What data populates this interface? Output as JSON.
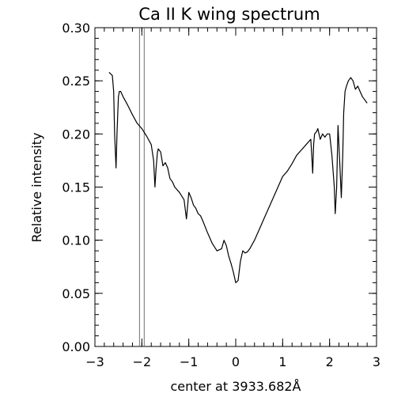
{
  "chart_data": {
    "type": "line",
    "title": "Ca II K wing spectrum",
    "xlabel": "center at 3933.682Å",
    "ylabel": "Relative intensity",
    "xlim": [
      -3,
      3
    ],
    "ylim": [
      0.0,
      0.3
    ],
    "x_ticks": [
      "−3",
      "−2",
      "−1",
      "0",
      "1",
      "2",
      "3"
    ],
    "y_ticks": [
      "0.00",
      "0.05",
      "0.10",
      "0.15",
      "0.20",
      "0.25",
      "0.30"
    ],
    "grid": false,
    "line_color": "#000000",
    "marker_line_color": "#707070",
    "vertical_markers_x": [
      -2.05,
      -1.95
    ],
    "series": [
      {
        "x": [
          -2.7,
          -2.63,
          -2.6,
          -2.58,
          -2.55,
          -2.53,
          -2.5,
          -2.48,
          -2.45,
          -2.4,
          -2.3,
          -2.2,
          -2.1,
          -2.0,
          -1.9,
          -1.8,
          -1.75,
          -1.72,
          -1.7,
          -1.67,
          -1.65,
          -1.6,
          -1.55,
          -1.5,
          -1.45,
          -1.42,
          -1.4,
          -1.35,
          -1.3,
          -1.2,
          -1.1,
          -1.05,
          -1.03,
          -1.0,
          -0.95,
          -0.9,
          -0.85,
          -0.8,
          -0.75,
          -0.7,
          -0.6,
          -0.5,
          -0.4,
          -0.3,
          -0.25,
          -0.2,
          -0.15,
          -0.1,
          -0.05,
          0.0,
          0.05,
          0.1,
          0.15,
          0.2,
          0.25,
          0.3,
          0.4,
          0.5,
          0.6,
          0.7,
          0.8,
          0.9,
          1.0,
          1.1,
          1.2,
          1.3,
          1.4,
          1.5,
          1.6,
          1.62,
          1.64,
          1.66,
          1.68,
          1.72,
          1.75,
          1.8,
          1.85,
          1.9,
          1.95,
          2.0,
          2.05,
          2.1,
          2.12,
          2.15,
          2.18,
          2.22,
          2.25,
          2.28,
          2.3,
          2.33,
          2.36,
          2.4,
          2.45,
          2.5,
          2.55,
          2.6,
          2.65,
          2.7,
          2.75,
          2.8
        ],
        "y": [
          0.258,
          0.255,
          0.24,
          0.2,
          0.168,
          0.2,
          0.235,
          0.24,
          0.24,
          0.235,
          0.227,
          0.218,
          0.21,
          0.205,
          0.198,
          0.19,
          0.175,
          0.15,
          0.165,
          0.182,
          0.186,
          0.183,
          0.17,
          0.173,
          0.168,
          0.162,
          0.158,
          0.155,
          0.15,
          0.145,
          0.138,
          0.12,
          0.13,
          0.145,
          0.14,
          0.133,
          0.13,
          0.125,
          0.123,
          0.118,
          0.107,
          0.097,
          0.09,
          0.092,
          0.1,
          0.095,
          0.085,
          0.078,
          0.07,
          0.06,
          0.062,
          0.08,
          0.09,
          0.088,
          0.089,
          0.092,
          0.1,
          0.11,
          0.12,
          0.13,
          0.14,
          0.15,
          0.16,
          0.165,
          0.172,
          0.18,
          0.185,
          0.19,
          0.195,
          0.18,
          0.163,
          0.19,
          0.2,
          0.202,
          0.205,
          0.195,
          0.2,
          0.197,
          0.2,
          0.2,
          0.18,
          0.15,
          0.125,
          0.15,
          0.208,
          0.17,
          0.14,
          0.18,
          0.22,
          0.24,
          0.245,
          0.25,
          0.253,
          0.25,
          0.242,
          0.245,
          0.24,
          0.235,
          0.232,
          0.229
        ]
      }
    ]
  }
}
